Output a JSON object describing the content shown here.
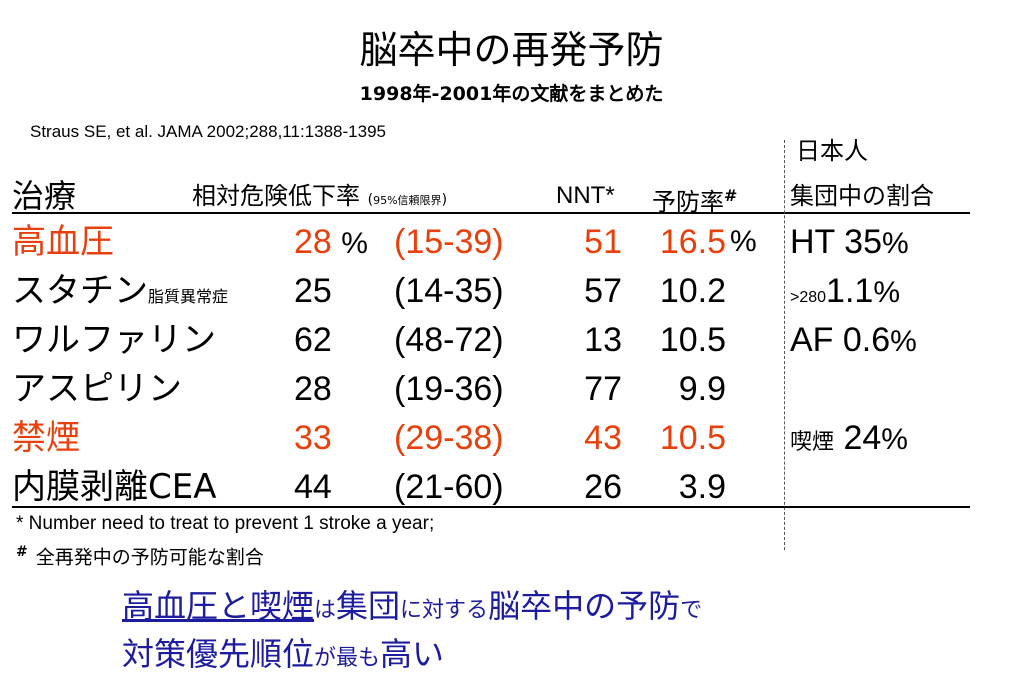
{
  "title": "脳卒中の再発予防",
  "subtitle": "1998年-2001年の文献をまとめた",
  "citation": "Straus SE, et al. JAMA 2002;288,11:1388-1395",
  "extra_header_top": "日本人",
  "header": {
    "treatment": "治療",
    "rrr": "相対危険低下率",
    "ci_open": "(",
    "ci_label": "95%信頼限界",
    "ci_close": ")",
    "nnt": "NNT*",
    "prevention": "予防率",
    "prevention_mark": "#",
    "extra": "集団中の割合"
  },
  "rows": [
    {
      "name": "高血圧",
      "name_sub": "",
      "rrr": "28",
      "rrr_pct": "%",
      "ci": "(15-39)",
      "nnt": "51",
      "pr": "16.5",
      "pr_pct": "%",
      "extra_pre": "",
      "extra_main": "HT 35",
      "extra_pct": "%",
      "color": "#e8400c"
    },
    {
      "name": "スタチン",
      "name_sub": "脂質異常症",
      "rrr": "25",
      "rrr_pct": "",
      "ci": "(14-35)",
      "nnt": "57",
      "pr": "10.2",
      "pr_pct": "",
      "extra_pre": ">280",
      "extra_main": "1.1",
      "extra_pct": "%",
      "color": "#000000"
    },
    {
      "name": "ワルファリン",
      "name_sub": "",
      "rrr": "62",
      "rrr_pct": "",
      "ci": "(48-72)",
      "nnt": "13",
      "pr": "10.5",
      "pr_pct": "",
      "extra_pre": "",
      "extra_main": "AF 0.6",
      "extra_pct": "%",
      "color": "#000000"
    },
    {
      "name": "アスピリン",
      "name_sub": "",
      "rrr": "28",
      "rrr_pct": "",
      "ci": "(19-36)",
      "nnt": "77",
      "pr": "9.9",
      "pr_pct": "",
      "extra_pre": "",
      "extra_main": "",
      "extra_pct": "",
      "color": "#000000"
    },
    {
      "name": "禁煙",
      "name_sub": "",
      "rrr": "33",
      "rrr_pct": "",
      "ci": "(29-38)",
      "nnt": "43",
      "pr": "10.5",
      "pr_pct": "",
      "extra_pre": "喫煙",
      "extra_main": " 24",
      "extra_pct": "%",
      "color": "#e8400c"
    },
    {
      "name": "内膜剥離CEA",
      "name_sub": "",
      "rrr": "44",
      "rrr_pct": "",
      "ci": "(21-60)",
      "nnt": "26",
      "pr": "3.9",
      "pr_pct": "",
      "extra_pre": "",
      "extra_main": "",
      "extra_pct": "",
      "color": "#000000"
    }
  ],
  "footnotes": {
    "nnt": "* Number need to treat to prevent 1 stroke a year;",
    "prevention_mark": "#",
    "prevention": "全再発中の予防可能な割合"
  },
  "conclusion": {
    "line1": [
      {
        "text": "高血圧と喫煙",
        "style": "u"
      },
      {
        "text": "は",
        "style": "sm"
      },
      {
        "text": "集団",
        "style": ""
      },
      {
        "text": "に対する",
        "style": "sm"
      },
      {
        "text": "脳卒中の予防",
        "style": ""
      },
      {
        "text": "で",
        "style": "sm"
      }
    ],
    "line2": [
      {
        "text": "対策優先順位",
        "style": ""
      },
      {
        "text": "が",
        "style": "sm"
      },
      {
        "text": "最も",
        "style": "sm"
      },
      {
        "text": "高い",
        "style": ""
      }
    ],
    "color": "#1e1c9e"
  },
  "colors": {
    "highlight": "#e8400c",
    "conclusion": "#1e1c9e"
  }
}
